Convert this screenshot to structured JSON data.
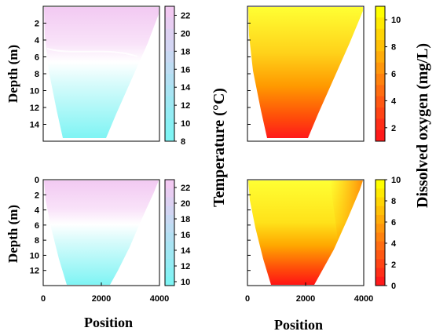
{
  "chart_data": [
    {
      "id": "temp_top",
      "type": "heatmap",
      "description_kind": "depth cross-section contour",
      "colormap": [
        "#7ff4f4",
        "#f2c9f2"
      ],
      "ylabel": "Depth (m)",
      "xlabel": "",
      "y_ticks": [
        "2",
        "4",
        "6",
        "8",
        "10",
        "12",
        "14"
      ],
      "x_ticks": [],
      "ylim": [
        0,
        16
      ],
      "xlim": [
        0,
        4000
      ],
      "colorbar_ticks": [
        "8",
        "10",
        "12",
        "14",
        "16",
        "18",
        "20",
        "22"
      ],
      "colorbar_range": [
        8,
        23
      ]
    },
    {
      "id": "do_top",
      "type": "heatmap",
      "description_kind": "depth cross-section contour",
      "colormap": [
        "#ff1a1a",
        "#ffff00"
      ],
      "ylabel": "",
      "xlabel": "",
      "y_ticks": [],
      "x_ticks": [],
      "ylim": [
        0,
        16
      ],
      "xlim": [
        0,
        4000
      ],
      "colorbar_ticks": [
        "2",
        "4",
        "6",
        "8",
        "10"
      ],
      "colorbar_range": [
        1,
        11
      ]
    },
    {
      "id": "temp_bottom",
      "type": "heatmap",
      "description_kind": "depth cross-section contour",
      "colormap": [
        "#7ff4f4",
        "#f2c9f2"
      ],
      "ylabel": "Depth (m)",
      "xlabel": "Position",
      "y_ticks": [
        "0",
        "2",
        "4",
        "6",
        "8",
        "10",
        "12"
      ],
      "x_ticks": [
        "0",
        "2000",
        "4000"
      ],
      "ylim": [
        0,
        14
      ],
      "xlim": [
        0,
        4000
      ],
      "colorbar_ticks": [
        "10",
        "12",
        "14",
        "16",
        "18",
        "20",
        "22"
      ],
      "colorbar_range": [
        9.5,
        23
      ]
    },
    {
      "id": "do_bottom",
      "type": "heatmap",
      "description_kind": "depth cross-section contour",
      "colormap": [
        "#ff1a1a",
        "#ffff00"
      ],
      "ylabel": "",
      "xlabel": "Position",
      "y_ticks": [],
      "x_ticks": [
        "0",
        "2000",
        "4000"
      ],
      "ylim": [
        0,
        14
      ],
      "xlim": [
        0,
        4000
      ],
      "colorbar_ticks": [
        "0",
        "2",
        "4",
        "6",
        "8",
        "10"
      ],
      "colorbar_range": [
        0,
        10
      ]
    }
  ],
  "shared_labels": {
    "temperature": "Temperature (°C)",
    "dissolved_oxygen": "Dissolved oxygen (mg/L)"
  }
}
